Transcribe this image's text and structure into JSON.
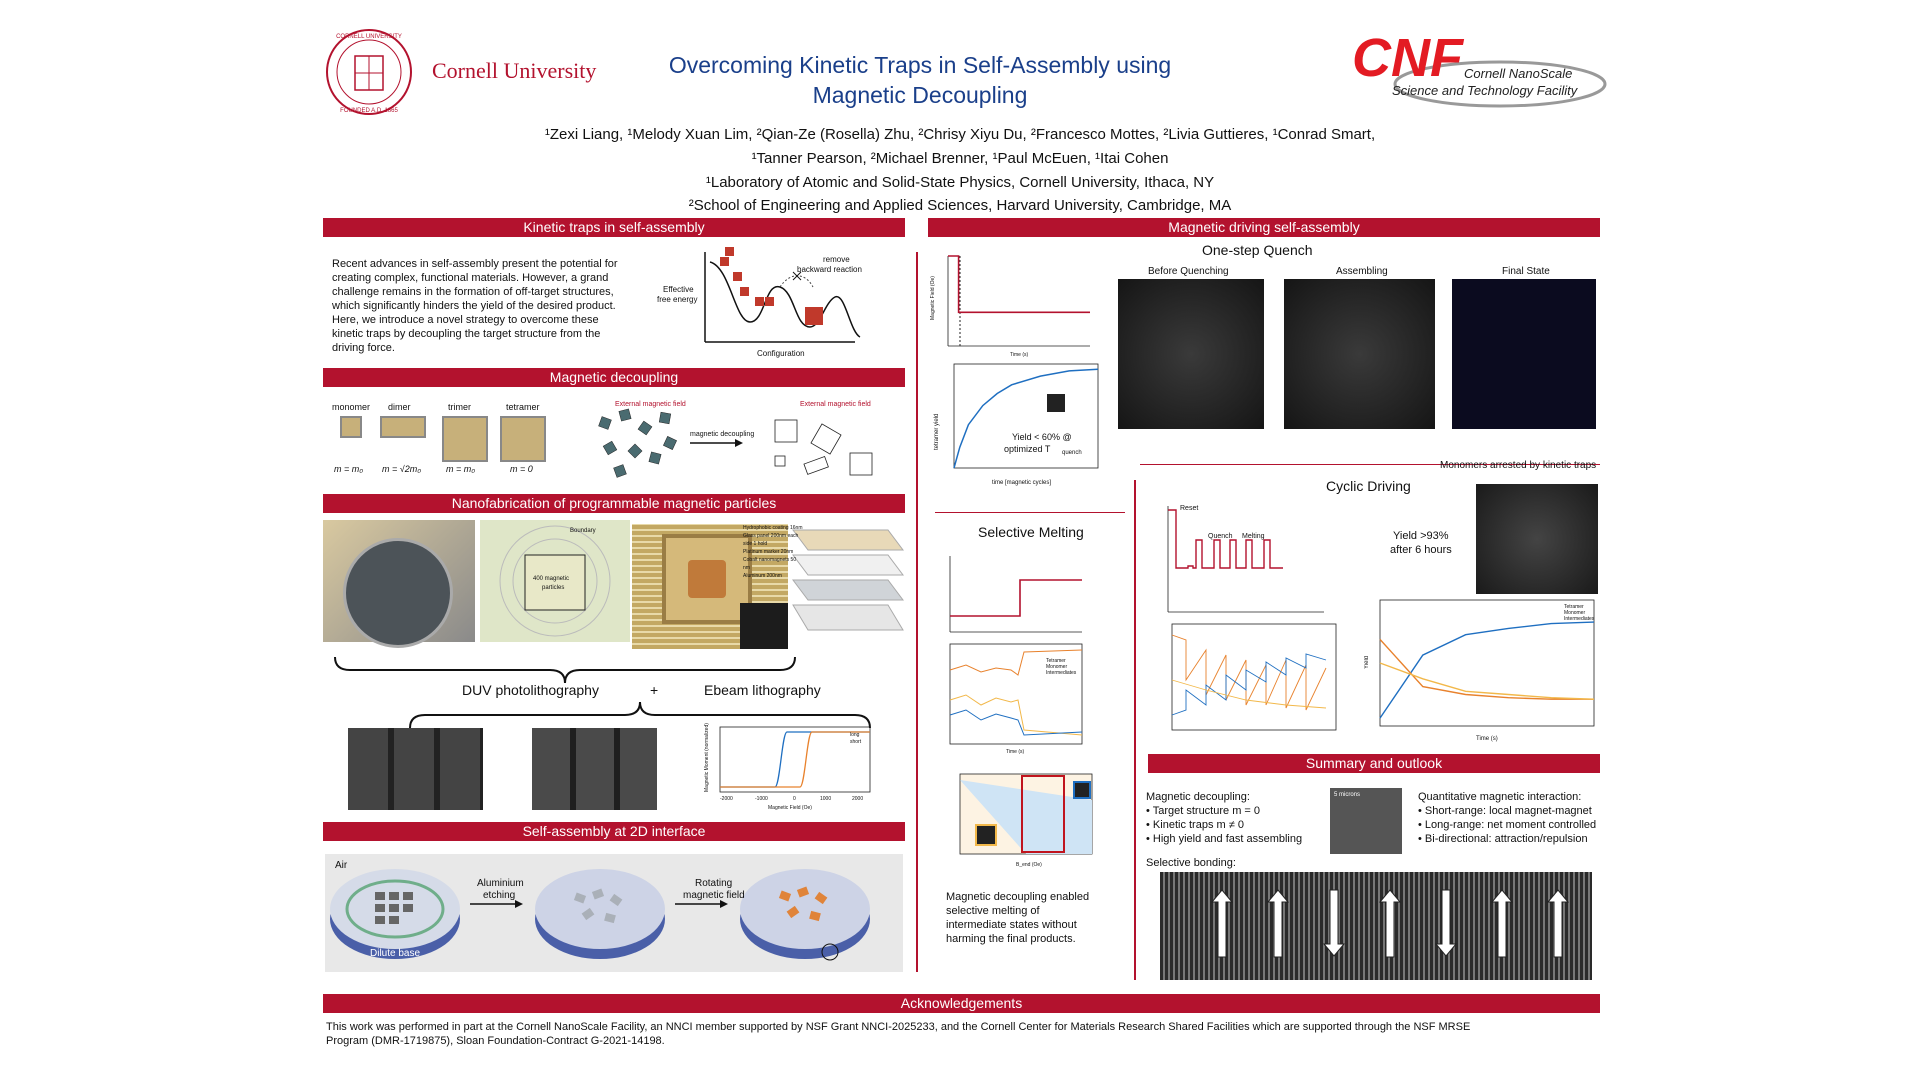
{
  "header": {
    "cornell_name": "Cornell University",
    "cnf_logo": "CNF",
    "cnf_line1": "Cornell NanoScale",
    "cnf_line2": "Science and Technology Facility",
    "title_line1": "Overcoming Kinetic Traps in Self-Assembly using",
    "title_line2": "Magnetic Decoupling",
    "authors_line1": "¹Zexi Liang, ¹Melody Xuan Lim, ²Qian-Ze (Rosella) Zhu, ²Chrisy Xiyu Du, ²Francesco Mottes, ²Livia Guttieres, ¹Conrad Smart,",
    "authors_line2": "¹Tanner Pearson, ²Michael Brenner, ¹Paul McEuen, ¹Itai Cohen",
    "affil1": "¹Laboratory of Atomic and Solid-State Physics, Cornell University, Ithaca, NY",
    "affil2": "²School of Engineering and Applied Sciences, Harvard University, Cambridge, MA"
  },
  "sections": {
    "kinetic": {
      "title": "Kinetic traps in self-assembly",
      "text": "Recent advances in self-assembly present the potential for creating complex, functional materials. However, a grand challenge remains in the formation of off-target structures, which significantly hinders the yield of the desired product. Here, we introduce a novel strategy to overcome these kinetic traps by decoupling the target structure from the driving force.",
      "fig_ylabel1": "Effective",
      "fig_ylabel2": "free energy",
      "fig_xlabel": "Configuration",
      "fig_note1": "remove",
      "fig_note2": "backward reaction"
    },
    "decoupling": {
      "title": "Magnetic decoupling",
      "labels": [
        "monomer",
        "dimer",
        "trimer",
        "tetramer"
      ],
      "eqs": [
        "m = m₀",
        "m = √2m₀",
        "m = m₀",
        "m = 0"
      ],
      "ext_field": "External magnetic field",
      "arrow_label": "magnetic decoupling"
    },
    "nanofab": {
      "title": "Nanofabrication of programmable magnetic particles",
      "boundary": "Boundary",
      "particles1": "400 magnetic",
      "particles2": "particles",
      "layers": [
        "Hydrophobic coating 16nm",
        "Glass panel 200nm each side 1 hold",
        "Platinum marker 20nm",
        "Cobalt nanomagnets 50 nm",
        "Aluminum 200nm"
      ],
      "duv": "DUV photolithography",
      "plus": "+",
      "ebeam": "Ebeam lithography",
      "hyst_xlabel": "Magnetic Field (Oe)",
      "hyst_ylabel": "Magnetic Moment (normalized)",
      "hyst_legend": [
        "long",
        "short"
      ],
      "hyst_xticks": [
        "-2000",
        "-1000",
        "0",
        "1000",
        "2000"
      ]
    },
    "selfassembly": {
      "title": "Self-assembly at 2D interface",
      "air": "Air",
      "base": "Dilute base",
      "step1a": "Aluminium",
      "step1b": "etching",
      "step2a": "Rotating",
      "step2b": "magnetic field"
    },
    "driving": {
      "title": "Magnetic driving self-assembly",
      "onestep": "One-step Quench",
      "before": "Before Quenching",
      "assembling": "Assembling",
      "final": "Final State",
      "quench_ylabel": "Magnetic Field (Oe)",
      "quench_xlabel": "Time (s)",
      "yield_ylabel": "tetramer yield",
      "yield_xlabel": "time [magnetic cycles]",
      "yield_note1": "Yield < 60% @",
      "yield_note2": "optimized T",
      "yield_note_sub": "quench",
      "arrested": "Monomers arrested by kinetic traps",
      "cyclic": "Cyclic Driving",
      "reset": "Reset",
      "quench": "Quench",
      "melting": "Melting",
      "cyc_yield1": "Yield >93%",
      "cyc_yield2": "after 6 hours",
      "selective": "Selective Melting",
      "legend": [
        "Tetramer",
        "Monomer",
        "Intermediates"
      ],
      "melt_note": "Magnetic decoupling enabled selective melting of intermediate states without harming the final products.",
      "time_label": "Time (s)",
      "yield_label": "Yield",
      "bend_label": "B_end (Oe)"
    },
    "summary": {
      "title": "Summary and outlook",
      "left_head": "Magnetic decoupling:",
      "left_items": [
        "Target structure m = 0",
        "Kinetic traps m ≠ 0",
        "High yield and fast assembling"
      ],
      "right_head": "Quantitative magnetic interaction:",
      "right_items": [
        "Short-range: local magnet-magnet",
        "Long-range: net moment controlled",
        "Bi-directional: attraction/repulsion"
      ],
      "bonding": "Selective bonding:",
      "inset_scale": "5 microns"
    },
    "ack": {
      "title": "Acknowledgements",
      "text1": "This work was performed in part at the Cornell NanoScale Facility, an NNCI member supported by NSF Grant NNCI-2025233, and the Cornell Center for Materials Research Shared Facilities which are supported through the NSF MRSE",
      "text2": "Program (DMR-1719875), Sloan Foundation-Contract G-2021-14198."
    }
  },
  "colors": {
    "accent": "#b3122e",
    "blue": "#1f6fc1",
    "orange": "#e8822d",
    "yellow": "#f2b84a"
  },
  "chart_data": [
    {
      "type": "line",
      "title": "",
      "xlabel": "Time (s)",
      "ylabel": "Magnetic Field (Oe)",
      "x": [
        0,
        1.5,
        1.5,
        20
      ],
      "y": [
        40,
        40,
        15,
        15
      ],
      "xlim": [
        0,
        20
      ],
      "ylim": [
        0,
        40
      ]
    },
    {
      "type": "line",
      "xlabel": "time [magnetic cycles]",
      "ylabel": "tetramer yield",
      "x": [
        0,
        100,
        250,
        500,
        750,
        1000,
        1500,
        2000,
        2500
      ],
      "y": [
        0,
        0.12,
        0.25,
        0.36,
        0.43,
        0.48,
        0.53,
        0.56,
        0.57
      ],
      "xlim": [
        0,
        2500
      ],
      "ylim": [
        0,
        0.6
      ]
    },
    {
      "type": "line",
      "xlabel": "Time (s)",
      "ylabel": "Yield",
      "series": [
        {
          "name": "Tetramer",
          "x": [
            0,
            500,
            1000,
            1500,
            2000,
            2500
          ],
          "y": [
            0.05,
            0.45,
            0.58,
            0.62,
            0.65,
            0.66
          ]
        },
        {
          "name": "Monomer",
          "x": [
            0,
            500,
            1000,
            1500,
            2000,
            2500
          ],
          "y": [
            0.55,
            0.25,
            0.2,
            0.18,
            0.17,
            0.17
          ]
        },
        {
          "name": "Intermediates",
          "x": [
            0,
            500,
            1000,
            1500,
            2000,
            2500
          ],
          "y": [
            0.4,
            0.3,
            0.22,
            0.2,
            0.18,
            0.17
          ]
        }
      ],
      "xlim": [
        0,
        2500
      ],
      "ylim": [
        0,
        0.8
      ]
    }
  ]
}
